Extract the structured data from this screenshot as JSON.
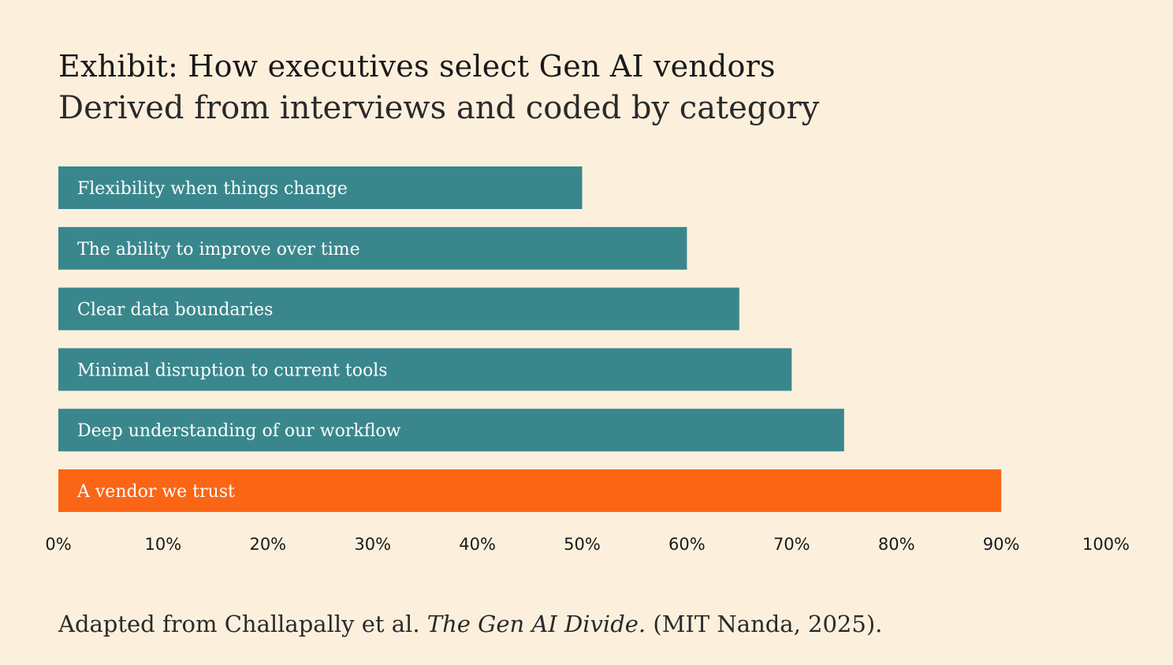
{
  "title": "Exhibit: How executives select Gen AI vendors",
  "subtitle": "Derived from interviews and coded by category",
  "source": {
    "prefix": "Adapted from Challapally et al. ",
    "italic": "The Gen AI Divide.",
    "suffix": " (MIT Nanda, 2025)."
  },
  "colors": {
    "bar": "#39878c",
    "highlight": "#fb6516",
    "background": "#fcf0dd"
  },
  "chart_data": {
    "type": "bar",
    "orientation": "horizontal",
    "categories": [
      "Flexibility when things change",
      "The ability to improve over time",
      "Clear data boundaries",
      "Minimal disruption to current tools",
      "Deep understanding of our workflow",
      "A vendor we trust"
    ],
    "values": [
      50,
      60,
      65,
      70,
      75,
      90
    ],
    "highlight_index": 5,
    "xlim": [
      0,
      100
    ],
    "x_ticks": [
      "0%",
      "10%",
      "20%",
      "30%",
      "40%",
      "50%",
      "60%",
      "70%",
      "80%",
      "90%",
      "100%"
    ],
    "grid": false,
    "legend": "none"
  }
}
